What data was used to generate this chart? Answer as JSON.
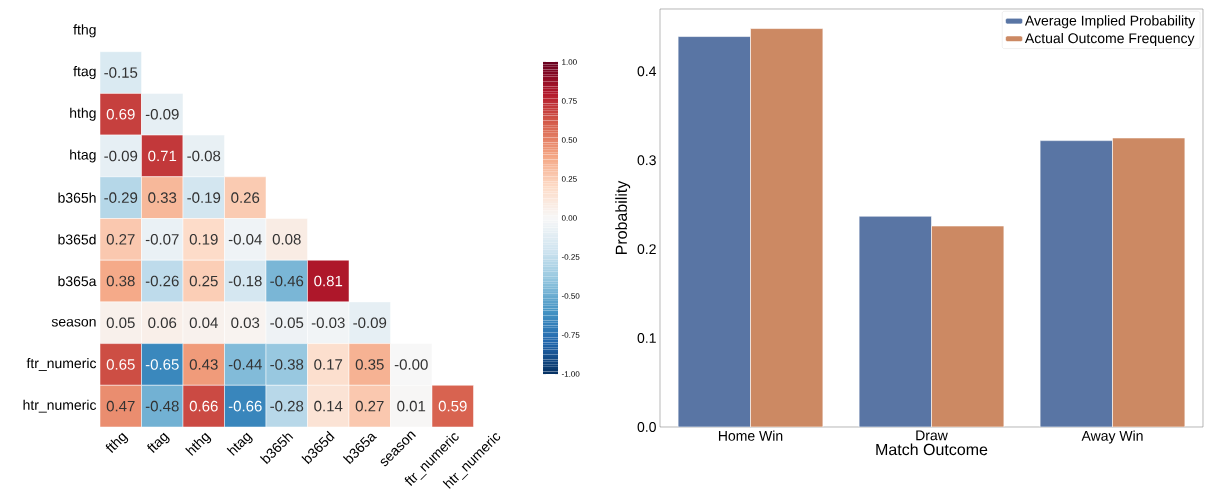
{
  "chart_data": [
    {
      "type": "heatmap",
      "categories": [
        "fthg",
        "ftag",
        "hthg",
        "htag",
        "b365h",
        "b365d",
        "b365a",
        "season",
        "ftr_numeric",
        "htr_numeric"
      ],
      "y_categories": [
        "fthg",
        "ftag",
        "hthg",
        "htag",
        "b365h",
        "b365d",
        "b365a",
        "season",
        "ftr_numeric",
        "htr_numeric"
      ],
      "cells": [
        [
          null,
          null,
          null,
          null,
          null,
          null,
          null,
          null,
          null,
          null
        ],
        [
          -0.15,
          null,
          null,
          null,
          null,
          null,
          null,
          null,
          null,
          null
        ],
        [
          0.69,
          -0.09,
          null,
          null,
          null,
          null,
          null,
          null,
          null,
          null
        ],
        [
          -0.09,
          0.71,
          -0.08,
          null,
          null,
          null,
          null,
          null,
          null,
          null
        ],
        [
          -0.29,
          0.33,
          -0.19,
          0.26,
          null,
          null,
          null,
          null,
          null,
          null
        ],
        [
          0.27,
          -0.07,
          0.19,
          -0.04,
          0.08,
          null,
          null,
          null,
          null,
          null
        ],
        [
          0.38,
          -0.26,
          0.25,
          -0.18,
          -0.46,
          0.81,
          null,
          null,
          null,
          null
        ],
        [
          0.05,
          0.06,
          0.04,
          0.03,
          -0.05,
          -0.03,
          -0.09,
          null,
          null,
          null
        ],
        [
          0.65,
          -0.65,
          0.43,
          -0.44,
          -0.38,
          0.17,
          0.35,
          0,
          null,
          null
        ],
        [
          0.47,
          -0.48,
          0.66,
          -0.66,
          -0.28,
          0.14,
          0.27,
          0.01,
          0.59,
          null
        ]
      ],
      "cell_labels": [
        [
          null,
          null,
          null,
          null,
          null,
          null,
          null,
          null,
          null,
          null
        ],
        [
          "-0.15",
          null,
          null,
          null,
          null,
          null,
          null,
          null,
          null,
          null
        ],
        [
          "0.69",
          "-0.09",
          null,
          null,
          null,
          null,
          null,
          null,
          null,
          null
        ],
        [
          "-0.09",
          "0.71",
          "-0.08",
          null,
          null,
          null,
          null,
          null,
          null,
          null
        ],
        [
          "-0.29",
          "0.33",
          "-0.19",
          "0.26",
          null,
          null,
          null,
          null,
          null,
          null
        ],
        [
          "0.27",
          "-0.07",
          "0.19",
          "-0.04",
          "0.08",
          null,
          null,
          null,
          null,
          null
        ],
        [
          "0.38",
          "-0.26",
          "0.25",
          "-0.18",
          "-0.46",
          "0.81",
          null,
          null,
          null,
          null
        ],
        [
          "0.05",
          "0.06",
          "0.04",
          "0.03",
          "-0.05",
          "-0.03",
          "-0.09",
          null,
          null,
          null
        ],
        [
          "0.65",
          "-0.65",
          "0.43",
          "-0.44",
          "-0.38",
          "0.17",
          "0.35",
          "-0.00",
          null,
          null
        ],
        [
          "0.47",
          "-0.48",
          "0.66",
          "-0.66",
          "-0.28",
          "0.14",
          "0.27",
          "0.01",
          "0.59",
          null
        ]
      ],
      "clim": [
        -1,
        1
      ],
      "cticks": [
        {
          "value": -1,
          "label": "-1.00"
        },
        {
          "value": -0.75,
          "label": "-0.75"
        },
        {
          "value": -0.5,
          "label": "-0.50"
        },
        {
          "value": -0.25,
          "label": "-0.25"
        },
        {
          "value": 0,
          "label": "0.00"
        },
        {
          "value": 0.25,
          "label": "0.25"
        },
        {
          "value": 0.5,
          "label": "0.50"
        },
        {
          "value": 0.75,
          "label": "0.75"
        },
        {
          "value": 1,
          "label": "1.00"
        }
      ]
    },
    {
      "type": "bar",
      "categories": [
        "Home Win",
        "Draw",
        "Away Win"
      ],
      "series": [
        {
          "name": "Average Implied Probability",
          "color": "#5975a4",
          "values": [
            0.439,
            0.237,
            0.322
          ]
        },
        {
          "name": "Actual Outcome Frequency",
          "color": "#cc8963",
          "values": [
            0.448,
            0.226,
            0.325
          ]
        }
      ],
      "xlabel": "Match Outcome",
      "ylabel": "Probability",
      "ylim": [
        0,
        0.47
      ],
      "yticks": [
        {
          "value": 0,
          "label": "0.0"
        },
        {
          "value": 0.1,
          "label": "0.1"
        },
        {
          "value": 0.2,
          "label": "0.2"
        },
        {
          "value": 0.3,
          "label": "0.3"
        },
        {
          "value": 0.4,
          "label": "0.4"
        }
      ],
      "legend": "top right"
    }
  ]
}
